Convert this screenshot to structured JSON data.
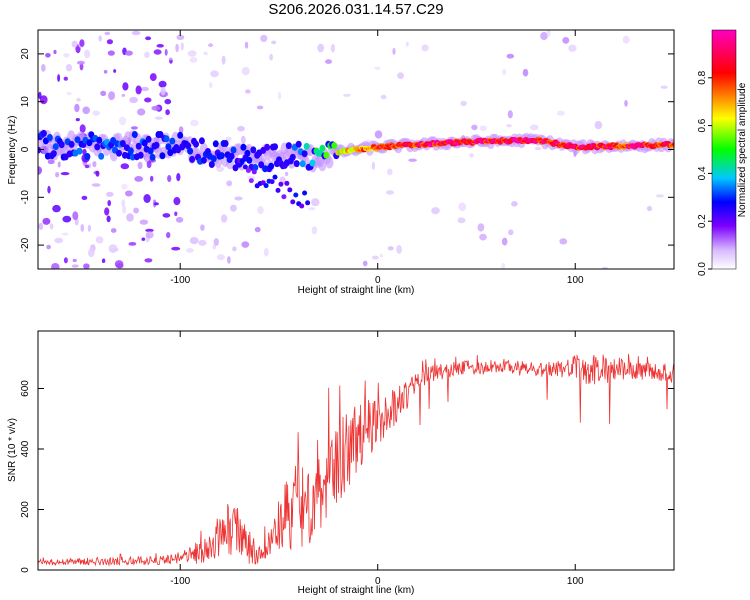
{
  "title": "S206.2026.031.14.57.C29",
  "chart_data": [
    {
      "type": "heatmap",
      "title": "S206.2026.031.14.57.C29",
      "xlabel": "Height of straight line (km)",
      "ylabel": "Frequency (Hz)",
      "xlim": [
        -172,
        150
      ],
      "ylim": [
        -25,
        25
      ],
      "xticks": [
        "-100",
        "0",
        "100"
      ],
      "xtick_values": [
        -100,
        0,
        100
      ],
      "yticks": [
        "-20",
        "-10",
        "0",
        "10",
        "20"
      ],
      "ytick_values": [
        -20,
        -10,
        0,
        10,
        20
      ],
      "colorbar": {
        "label": "Normalized spectral amplitude",
        "range": [
          0,
          1
        ],
        "ticks": [
          "0.0",
          "0.2",
          "0.4",
          "0.6",
          "0.8"
        ],
        "tick_values": [
          0,
          0.2,
          0.4,
          0.6,
          0.8
        ],
        "colormap": [
          "#ffffff",
          "#d8b8ff",
          "#7b00ff",
          "#0000ff",
          "#00c8ff",
          "#00ff00",
          "#ffff00",
          "#ff0000",
          "#ff00c0"
        ]
      },
      "ridge": [
        {
          "x": -165,
          "f": 1.0,
          "amp": 0.3
        },
        {
          "x": -140,
          "f": 0.5,
          "amp": 0.35
        },
        {
          "x": -120,
          "f": 1.0,
          "amp": 0.35
        },
        {
          "x": -100,
          "f": 0.5,
          "amp": 0.3
        },
        {
          "x": -80,
          "f": -1.0,
          "amp": 0.3
        },
        {
          "x": -60,
          "f": -2.0,
          "amp": 0.3
        },
        {
          "x": -45,
          "f": -1.0,
          "amp": 0.3
        },
        {
          "x": -30,
          "f": -2.0,
          "amp": 0.5
        },
        {
          "x": -20,
          "f": -0.5,
          "amp": 0.7
        },
        {
          "x": 0,
          "f": 0.5,
          "amp": 0.85
        },
        {
          "x": 40,
          "f": 1.5,
          "amp": 0.95
        },
        {
          "x": 80,
          "f": 2.0,
          "amp": 0.95
        },
        {
          "x": 100,
          "f": 0.5,
          "amp": 0.9
        },
        {
          "x": 150,
          "f": 1.0,
          "amp": 0.9
        }
      ]
    },
    {
      "type": "line",
      "xlabel": "Height of straight line (km)",
      "ylabel": "SNR (10 * v/v)",
      "xlim": [
        -172,
        150
      ],
      "ylim": [
        0,
        790
      ],
      "xticks": [
        "-100",
        "0",
        "100"
      ],
      "xtick_values": [
        -100,
        0,
        100
      ],
      "yticks": [
        "0",
        "200",
        "400",
        "600"
      ],
      "ytick_values": [
        0,
        200,
        400,
        600
      ],
      "series": [
        {
          "name": "SNR",
          "color": "#ee3333",
          "x": [
            -172,
            -150,
            -130,
            -110,
            -100,
            -90,
            -80,
            -75,
            -70,
            -65,
            -60,
            -55,
            -50,
            -45,
            -40,
            -35,
            -30,
            -25,
            -20,
            -15,
            -10,
            -5,
            0,
            5,
            10,
            15,
            20,
            25,
            30,
            40,
            50,
            60,
            70,
            80,
            90,
            100,
            110,
            120,
            130,
            140,
            150
          ],
          "y": [
            25,
            28,
            30,
            32,
            40,
            60,
            110,
            140,
            120,
            80,
            60,
            80,
            140,
            180,
            220,
            240,
            280,
            330,
            370,
            400,
            440,
            470,
            490,
            520,
            550,
            580,
            620,
            650,
            655,
            665,
            670,
            675,
            670,
            660,
            665,
            670,
            660,
            665,
            660,
            655,
            650
          ],
          "spread": [
            10,
            12,
            14,
            15,
            20,
            40,
            80,
            90,
            80,
            60,
            40,
            50,
            100,
            130,
            150,
            160,
            170,
            170,
            150,
            130,
            110,
            100,
            80,
            70,
            60,
            50,
            40,
            30,
            28,
            25,
            25,
            25,
            25,
            25,
            25,
            40,
            60,
            40,
            30,
            30,
            30
          ]
        }
      ]
    }
  ]
}
